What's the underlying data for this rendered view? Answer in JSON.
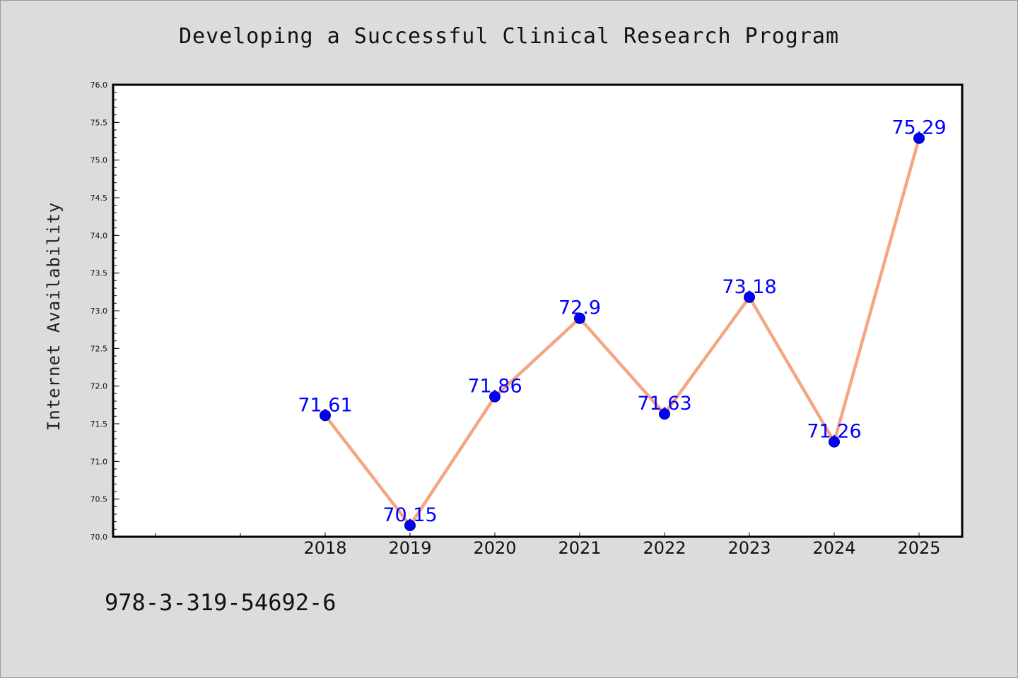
{
  "chart_data": {
    "type": "line",
    "title": "Developing a Successful Clinical Research Program",
    "xlabel": "",
    "ylabel": "Internet Availability",
    "categories": [
      "2018",
      "2019",
      "2020",
      "2021",
      "2022",
      "2023",
      "2024",
      "2025"
    ],
    "series": [
      {
        "values": [
          71.61,
          70.15,
          71.86,
          72.9,
          71.63,
          73.18,
          71.26,
          75.29
        ],
        "labels": [
          "71.61",
          "70.15",
          "71.86",
          "72.9",
          "71.63",
          "73.18",
          "71.26",
          "75.29"
        ],
        "line_color": "#f4a582",
        "marker_color": "#0000ff"
      }
    ],
    "ylim": [
      70.0,
      76.0
    ],
    "yticks": [
      "70.0",
      "70.5",
      "71.0",
      "71.5",
      "72.0",
      "72.5",
      "73.0",
      "73.5",
      "74.0",
      "74.5",
      "75.0",
      "75.5",
      "76.0"
    ],
    "grid": false,
    "legend": "none"
  },
  "footer": {
    "isbn": "978-3-319-54692-6"
  }
}
